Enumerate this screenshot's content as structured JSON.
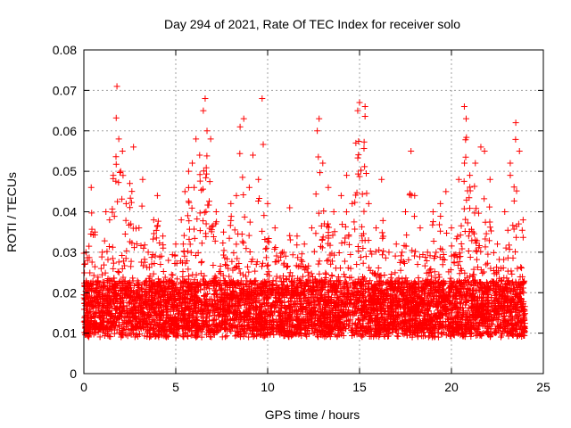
{
  "chart_data": {
    "type": "scatter",
    "title": "Day 294 of 2021, Rate Of TEC Index for receiver solo",
    "xlabel": "GPS time / hours",
    "ylabel": "ROTI / TECUs",
    "xlim": [
      0,
      25
    ],
    "ylim": [
      0,
      0.08
    ],
    "xticks": [
      0,
      5,
      10,
      15,
      20,
      25
    ],
    "xtick_labels": [
      "0",
      "5",
      "10",
      "15",
      "20",
      "25"
    ],
    "yticks": [
      0,
      0.01,
      0.02,
      0.03,
      0.04,
      0.05,
      0.06,
      0.07,
      0.08
    ],
    "ytick_labels": [
      "0",
      "0.01",
      "0.02",
      "0.03",
      "0.04",
      "0.05",
      "0.06",
      "0.07",
      "0.08"
    ],
    "grid": true,
    "marker": "+",
    "color": "#ff0000",
    "series": [
      {
        "name": "ROTI",
        "points": [
          [
            0.2,
            0.028
          ],
          [
            0.4,
            0.046
          ],
          [
            0.6,
            0.035
          ],
          [
            0.8,
            0.02
          ],
          [
            1.0,
            0.03
          ],
          [
            1.2,
            0.04
          ],
          [
            1.4,
            0.038
          ],
          [
            1.6,
            0.049
          ],
          [
            1.8,
            0.071
          ],
          [
            1.9,
            0.058
          ],
          [
            2.0,
            0.05
          ],
          [
            2.1,
            0.055
          ],
          [
            2.3,
            0.042
          ],
          [
            2.5,
            0.047
          ],
          [
            2.7,
            0.056
          ],
          [
            3.0,
            0.036
          ],
          [
            3.2,
            0.048
          ],
          [
            3.5,
            0.03
          ],
          [
            3.8,
            0.038
          ],
          [
            4.0,
            0.044
          ],
          [
            4.3,
            0.034
          ],
          [
            4.6,
            0.028
          ],
          [
            5.0,
            0.032
          ],
          [
            5.3,
            0.038
          ],
          [
            5.5,
            0.045
          ],
          [
            5.7,
            0.05
          ],
          [
            5.9,
            0.052
          ],
          [
            6.0,
            0.046
          ],
          [
            6.1,
            0.058
          ],
          [
            6.3,
            0.054
          ],
          [
            6.5,
            0.065
          ],
          [
            6.6,
            0.068
          ],
          [
            6.7,
            0.06
          ],
          [
            6.9,
            0.058
          ],
          [
            7.2,
            0.04
          ],
          [
            7.6,
            0.035
          ],
          [
            8.0,
            0.042
          ],
          [
            8.3,
            0.044
          ],
          [
            8.5,
            0.061
          ],
          [
            8.7,
            0.063
          ],
          [
            9.0,
            0.046
          ],
          [
            9.2,
            0.054
          ],
          [
            9.5,
            0.048
          ],
          [
            9.7,
            0.068
          ],
          [
            10.0,
            0.042
          ],
          [
            10.4,
            0.036
          ],
          [
            10.8,
            0.03
          ],
          [
            11.2,
            0.041
          ],
          [
            11.6,
            0.034
          ],
          [
            12.0,
            0.032
          ],
          [
            12.4,
            0.036
          ],
          [
            12.7,
            0.06
          ],
          [
            12.8,
            0.063
          ],
          [
            13.0,
            0.052
          ],
          [
            13.3,
            0.046
          ],
          [
            13.6,
            0.04
          ],
          [
            14.0,
            0.044
          ],
          [
            14.3,
            0.049
          ],
          [
            14.6,
            0.042
          ],
          [
            14.8,
            0.057
          ],
          [
            14.9,
            0.065
          ],
          [
            15.0,
            0.067
          ],
          [
            15.3,
            0.066
          ],
          [
            15.5,
            0.042
          ],
          [
            15.9,
            0.036
          ],
          [
            16.2,
            0.048
          ],
          [
            16.6,
            0.03
          ],
          [
            17.0,
            0.032
          ],
          [
            17.5,
            0.04
          ],
          [
            17.8,
            0.055
          ],
          [
            18.0,
            0.044
          ],
          [
            18.3,
            0.036
          ],
          [
            18.7,
            0.03
          ],
          [
            19.0,
            0.04
          ],
          [
            19.4,
            0.042
          ],
          [
            19.7,
            0.045
          ],
          [
            20.0,
            0.036
          ],
          [
            20.4,
            0.048
          ],
          [
            20.7,
            0.066
          ],
          [
            20.8,
            0.063
          ],
          [
            21.0,
            0.049
          ],
          [
            21.3,
            0.052
          ],
          [
            21.6,
            0.056
          ],
          [
            21.8,
            0.055
          ],
          [
            22.1,
            0.048
          ],
          [
            22.5,
            0.032
          ],
          [
            22.9,
            0.04
          ],
          [
            23.2,
            0.052
          ],
          [
            23.5,
            0.062
          ],
          [
            23.7,
            0.055
          ],
          [
            23.9,
            0.038
          ]
        ]
      }
    ],
    "density": {
      "hours_start": 0,
      "hours_end": 24,
      "points_per_hour": 240,
      "baseline": 0.016,
      "noise_floor": 0.005
    }
  }
}
